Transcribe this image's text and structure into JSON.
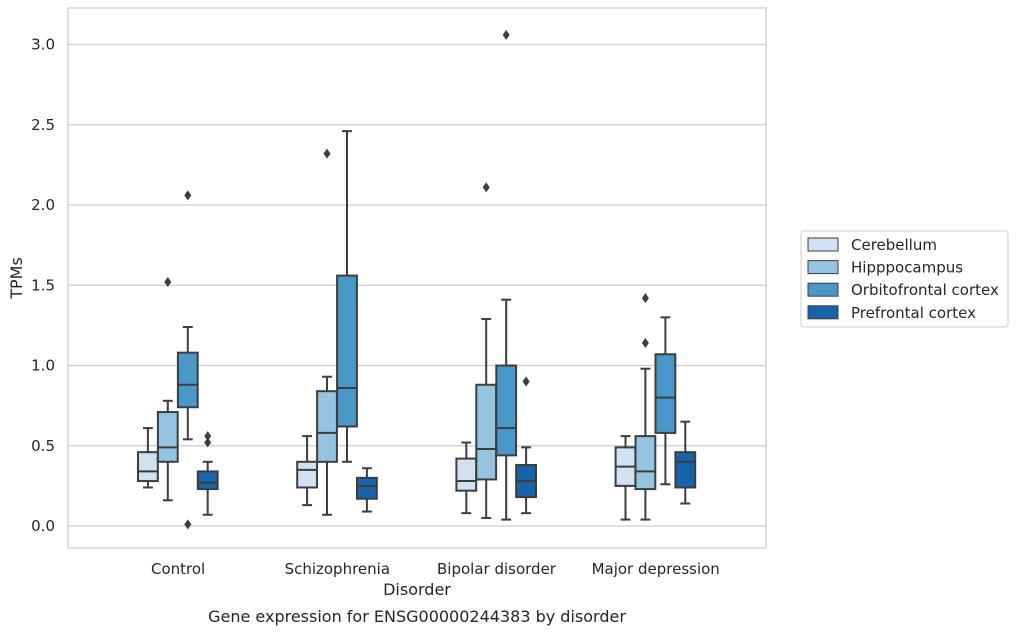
{
  "chart_data": {
    "type": "box",
    "title": "",
    "caption": "Gene expression for ENSG00000244383 by disorder",
    "xlabel": "Disorder",
    "ylabel": "TPMs",
    "categories": [
      "Control",
      "Schizophrenia",
      "Bipolar disorder",
      "Major depression"
    ],
    "yticks": [
      "0.0",
      "0.5",
      "1.0",
      "1.5",
      "2.0",
      "2.5",
      "3.0"
    ],
    "ylim": [
      -0.13,
      3.22
    ],
    "grid": "horizontal",
    "legend_position": "right",
    "series": [
      {
        "name": "Cerebellum",
        "color": "#d0e1f2",
        "boxes": [
          {
            "whislo": 0.24,
            "q1": 0.28,
            "med": 0.34,
            "q3": 0.46,
            "whishi": 0.61,
            "fliers": []
          },
          {
            "whislo": 0.13,
            "q1": 0.24,
            "med": 0.35,
            "q3": 0.4,
            "whishi": 0.56,
            "fliers": []
          },
          {
            "whislo": 0.08,
            "q1": 0.22,
            "med": 0.28,
            "q3": 0.42,
            "whishi": 0.52,
            "fliers": []
          },
          {
            "whislo": 0.04,
            "q1": 0.25,
            "med": 0.37,
            "q3": 0.49,
            "whishi": 0.56,
            "fliers": []
          }
        ]
      },
      {
        "name": "Hipppocampus",
        "color": "#94c4df",
        "boxes": [
          {
            "whislo": 0.16,
            "q1": 0.4,
            "med": 0.49,
            "q3": 0.71,
            "whishi": 0.78,
            "fliers": [
              1.52
            ]
          },
          {
            "whislo": 0.07,
            "q1": 0.4,
            "med": 0.58,
            "q3": 0.84,
            "whishi": 0.93,
            "fliers": [
              2.32
            ]
          },
          {
            "whislo": 0.05,
            "q1": 0.29,
            "med": 0.48,
            "q3": 0.88,
            "whishi": 1.29,
            "fliers": [
              2.11
            ]
          },
          {
            "whislo": 0.04,
            "q1": 0.23,
            "med": 0.34,
            "q3": 0.56,
            "whishi": 0.98,
            "fliers": [
              1.14,
              1.42
            ]
          }
        ]
      },
      {
        "name": "Orbitofrontal cortex",
        "color": "#4a98c9",
        "boxes": [
          {
            "whislo": 0.54,
            "q1": 0.74,
            "med": 0.88,
            "q3": 1.08,
            "whishi": 1.24,
            "fliers": [
              2.06,
              0.01
            ]
          },
          {
            "whislo": 0.4,
            "q1": 0.62,
            "med": 0.86,
            "q3": 1.56,
            "whishi": 2.46,
            "fliers": []
          },
          {
            "whislo": 0.04,
            "q1": 0.44,
            "med": 0.61,
            "q3": 1.0,
            "whishi": 1.41,
            "fliers": [
              3.06
            ]
          },
          {
            "whislo": 0.26,
            "q1": 0.58,
            "med": 0.8,
            "q3": 1.07,
            "whishi": 1.3,
            "fliers": []
          }
        ]
      },
      {
        "name": "Prefrontal cortex",
        "color": "#1764ab",
        "boxes": [
          {
            "whislo": 0.07,
            "q1": 0.23,
            "med": 0.27,
            "q3": 0.34,
            "whishi": 0.4,
            "fliers": [
              0.52,
              0.56
            ]
          },
          {
            "whislo": 0.09,
            "q1": 0.17,
            "med": 0.25,
            "q3": 0.3,
            "whishi": 0.36,
            "fliers": []
          },
          {
            "whislo": 0.08,
            "q1": 0.18,
            "med": 0.28,
            "q3": 0.38,
            "whishi": 0.49,
            "fliers": [
              0.9
            ]
          },
          {
            "whislo": 0.14,
            "q1": 0.24,
            "med": 0.4,
            "q3": 0.46,
            "whishi": 0.65,
            "fliers": []
          }
        ]
      }
    ]
  }
}
